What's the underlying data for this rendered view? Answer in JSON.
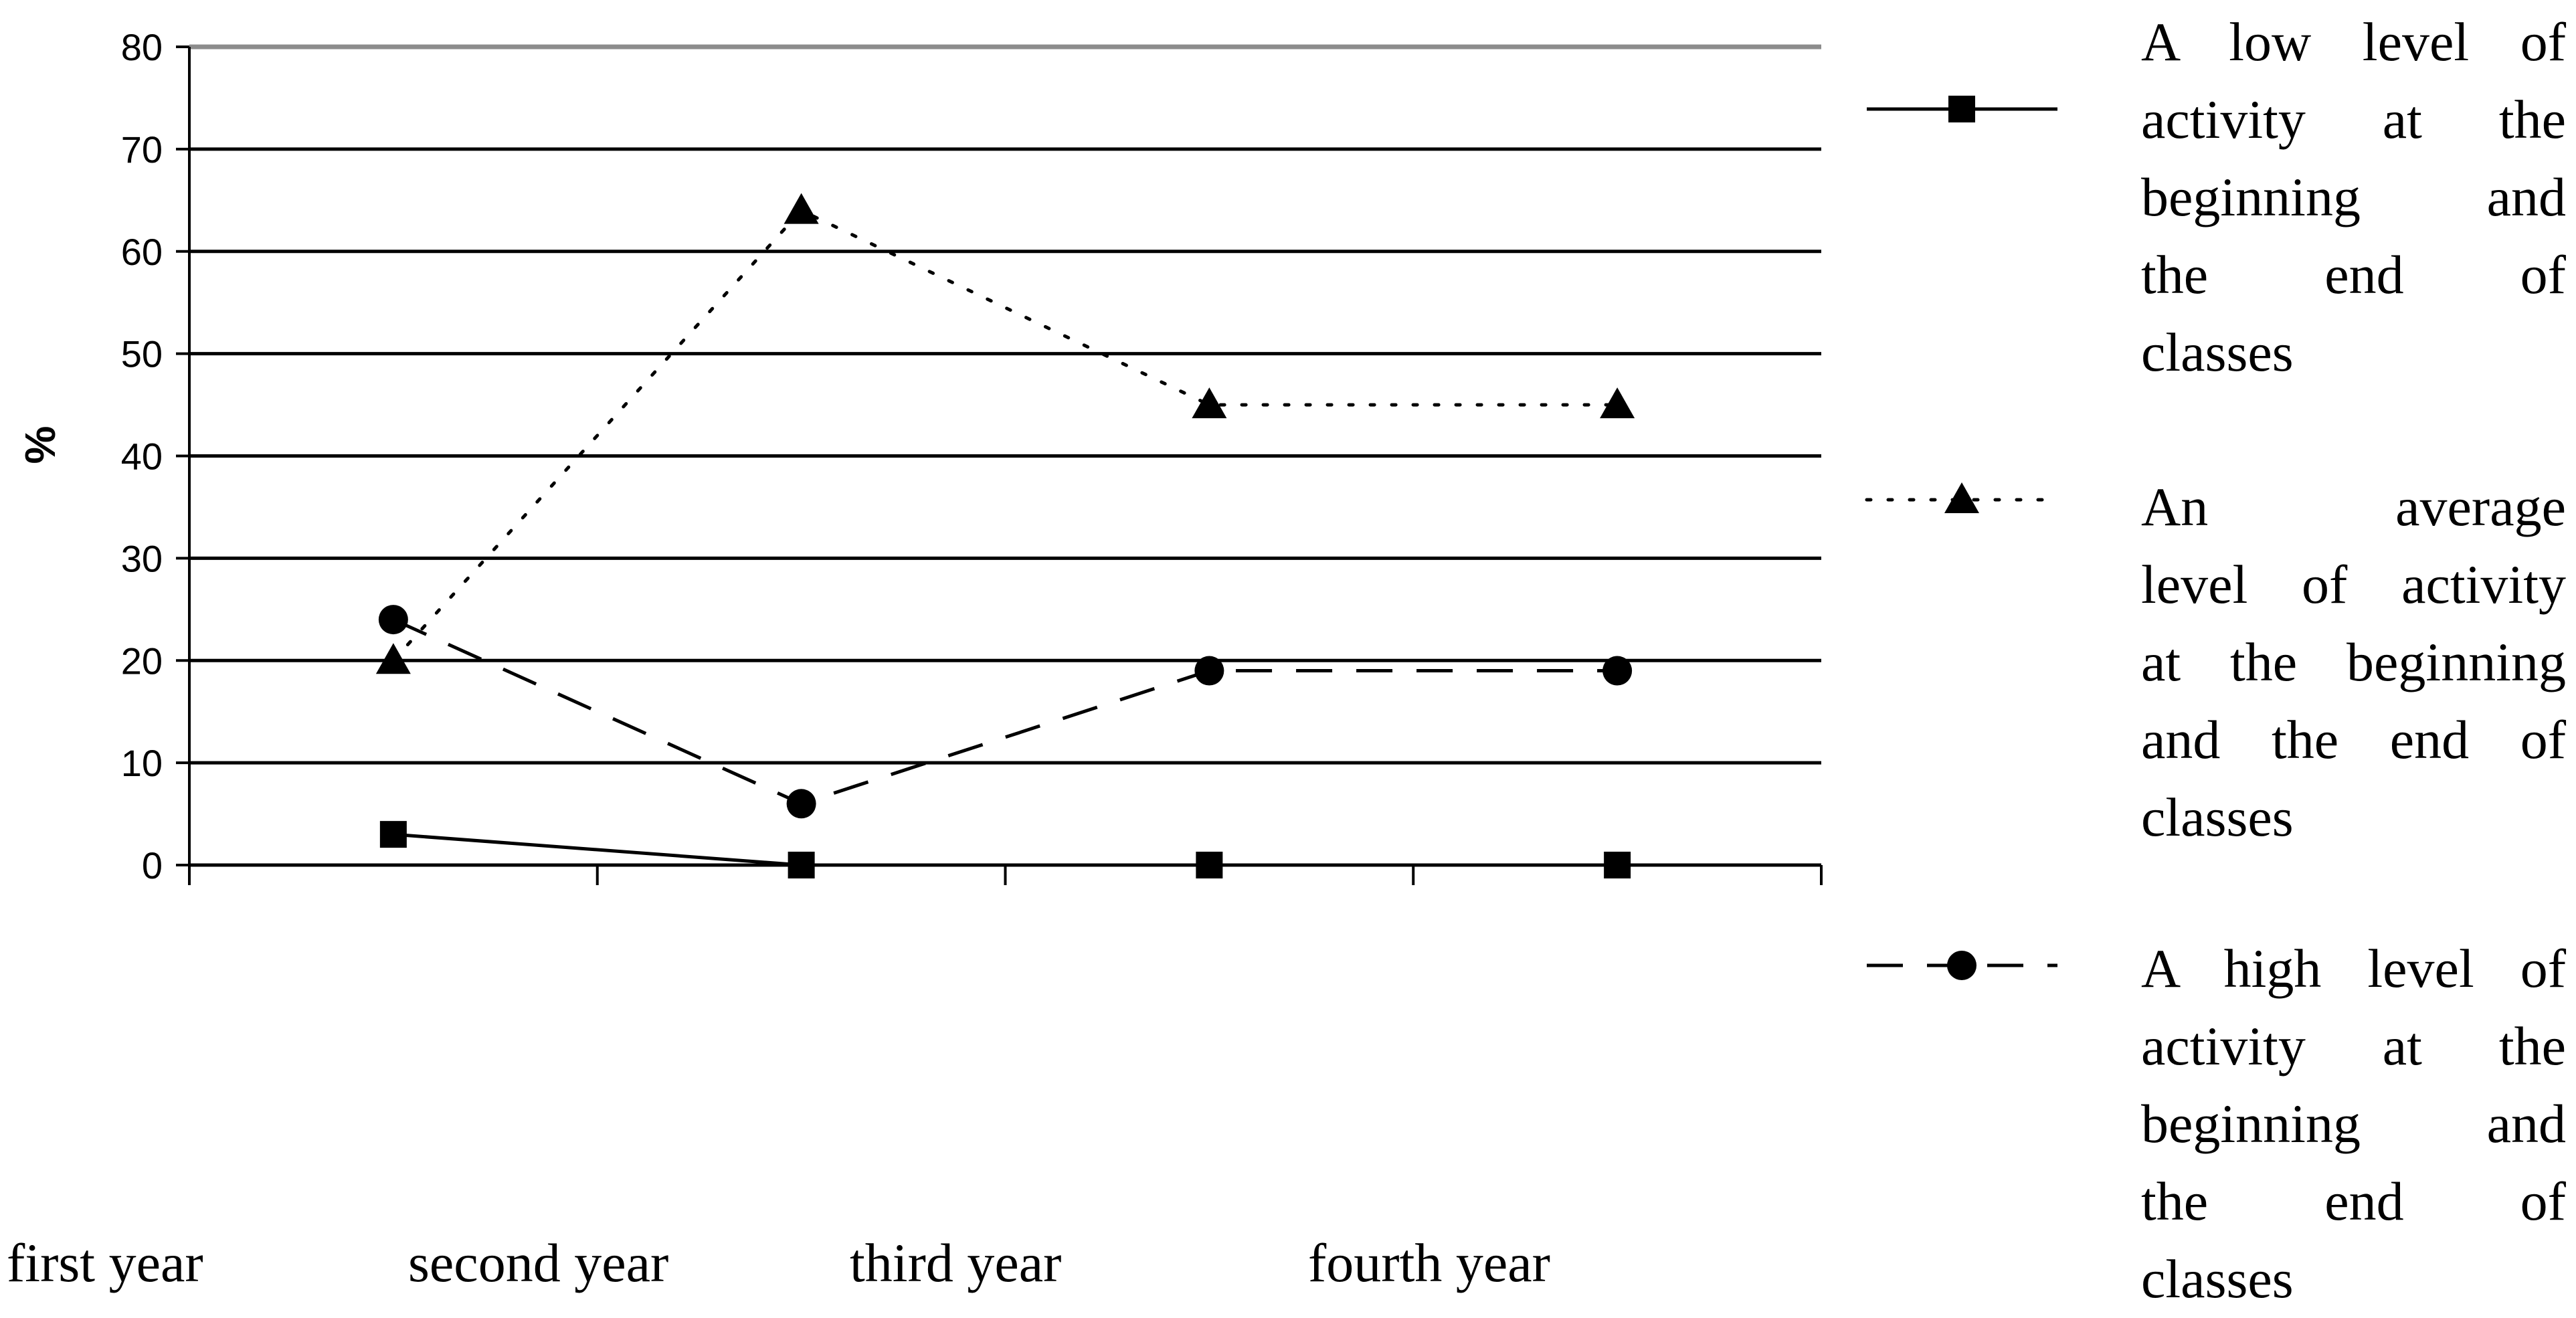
{
  "chart_data": {
    "type": "line",
    "ylabel": "%",
    "ylim": [
      0,
      80
    ],
    "yticks": [
      0,
      10,
      20,
      30,
      40,
      50,
      60,
      70,
      80
    ],
    "categories": [
      "first year",
      "second year",
      "third year",
      "fourth year"
    ],
    "series": [
      {
        "name": "A low level of activity at the beginning and the end of classes",
        "name_lines": [
          "A low level of",
          "activity at the",
          "beginning and",
          "the end of",
          "classes"
        ],
        "style": "solid",
        "marker": "square",
        "values": [
          3,
          0,
          0,
          0
        ]
      },
      {
        "name": "An average level of activity at the beginning and the end of classes",
        "name_lines": [
          "An average",
          "level of activity",
          "at the beginning",
          "and the end of",
          "classes"
        ],
        "style": "dotted",
        "marker": "triangle",
        "values": [
          20,
          64,
          45,
          45
        ]
      },
      {
        "name": "A high level of activity at the beginning and the end of classes",
        "name_lines": [
          "A high level of",
          "activity at the",
          "beginning and",
          "the end of",
          "classes"
        ],
        "style": "dashed",
        "marker": "circle",
        "values": [
          24,
          6,
          19,
          19
        ]
      }
    ],
    "grid": true,
    "legend_position": "right"
  }
}
